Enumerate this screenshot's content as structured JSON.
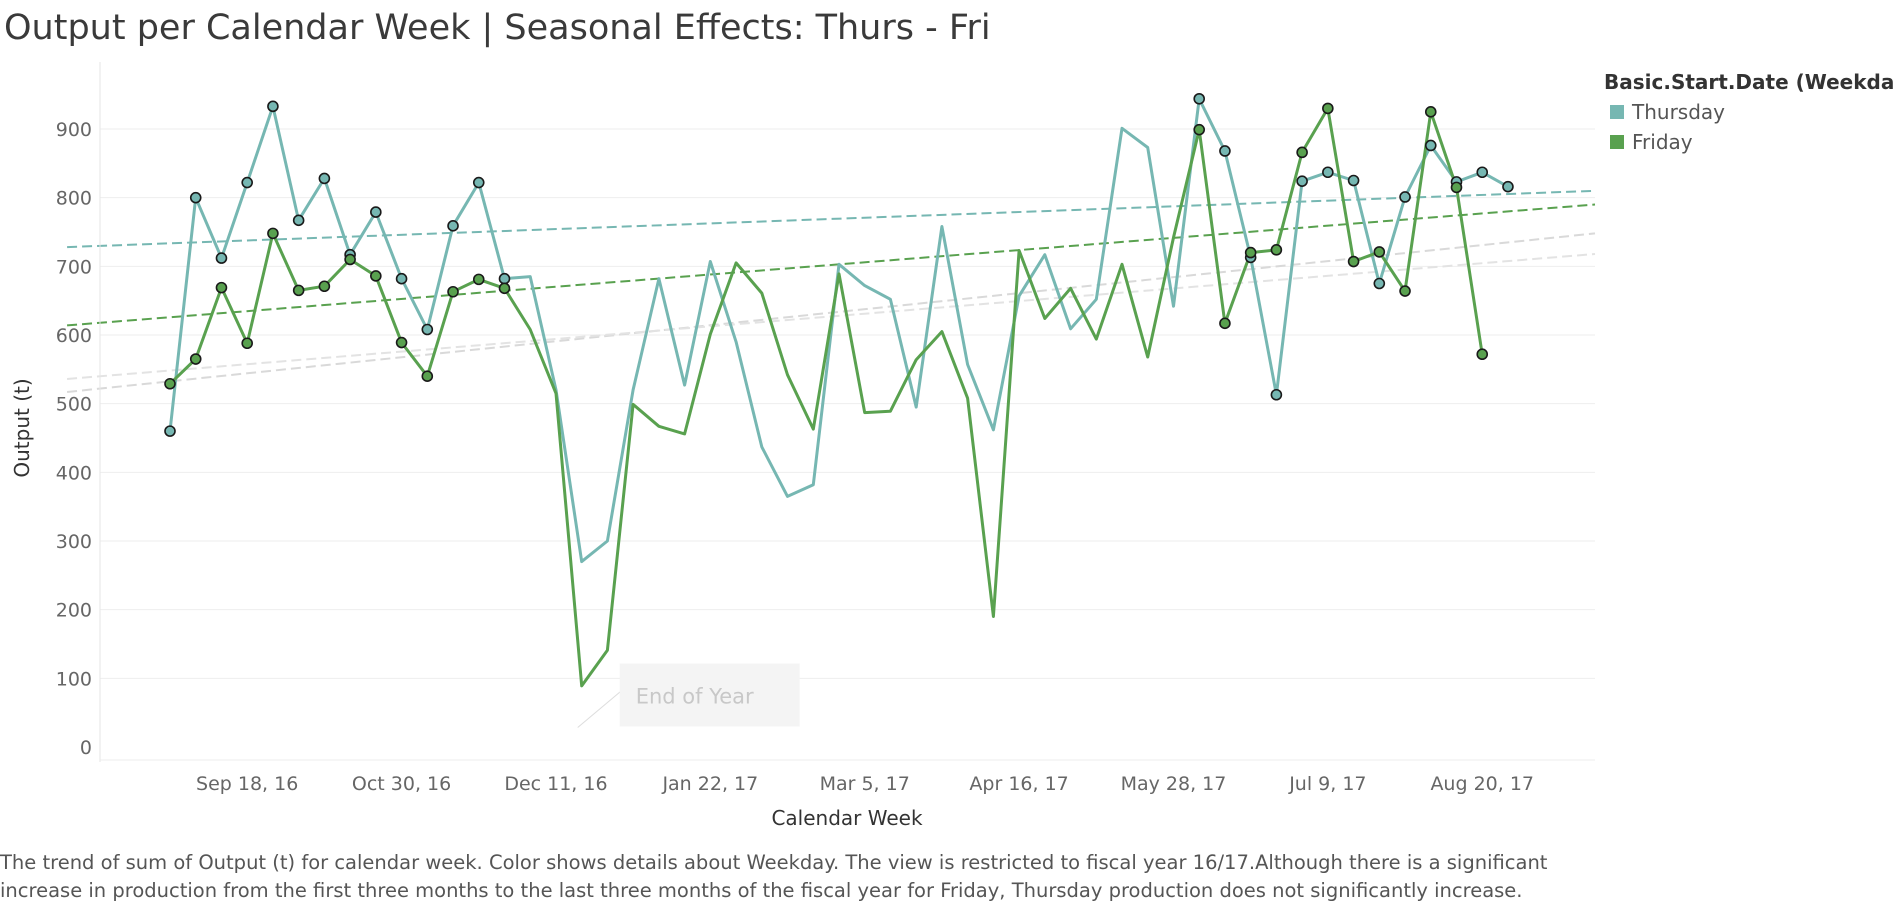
{
  "title": "Output per Calendar Week | Seasonal Effects: Thurs - Fri",
  "legend": {
    "title": "Basic.Start.Date (Weekdays)",
    "items": [
      {
        "label": "Thursday",
        "color": "#76b7b2"
      },
      {
        "label": "Friday",
        "color": "#59a14f"
      }
    ]
  },
  "caption": "The trend of sum of Output (t) for calendar week.  Color shows details about Weekday. The view is restricted to fiscal year 16/17.Although there is a significant increase in production from the first three months to the last three months of the fiscal year for Friday, Thursday production does not significantly increase.",
  "chart_data": {
    "type": "line",
    "title": "Output per Calendar Week | Seasonal Effects: Thurs - Fri",
    "xlabel": "Calendar Week",
    "ylabel": "Output (t)",
    "ylim": [
      0,
      1000
    ],
    "yticks": [
      0,
      100,
      200,
      300,
      400,
      500,
      600,
      700,
      800,
      900
    ],
    "x_tick_labels": [
      "Sep 18, 16",
      "Oct 30, 16",
      "Dec 11, 16",
      "Jan 22, 17",
      "Mar 5, 17",
      "Apr 16, 17",
      "May 28, 17",
      "Jul 9, 17",
      "Aug 20, 17"
    ],
    "x_week_range": [
      -4,
      54
    ],
    "x_tick_weeks": [
      3,
      9,
      15,
      21,
      27,
      33,
      39,
      45,
      51
    ],
    "grid": "horizontal",
    "legend_position": "top-right",
    "series": [
      {
        "name": "Thursday",
        "color": "#76b7b2",
        "points": [
          {
            "week": 0,
            "y": 460,
            "marker": true
          },
          {
            "week": 1,
            "y": 800,
            "marker": true
          },
          {
            "week": 2,
            "y": 712,
            "marker": true
          },
          {
            "week": 3,
            "y": 822,
            "marker": true
          },
          {
            "week": 4,
            "y": 933,
            "marker": true
          },
          {
            "week": 5,
            "y": 767,
            "marker": true
          },
          {
            "week": 6,
            "y": 828,
            "marker": true
          },
          {
            "week": 7,
            "y": 717,
            "marker": true
          },
          {
            "week": 8,
            "y": 779,
            "marker": true
          },
          {
            "week": 9,
            "y": 682,
            "marker": true
          },
          {
            "week": 10,
            "y": 608,
            "marker": true
          },
          {
            "week": 11,
            "y": 759,
            "marker": true
          },
          {
            "week": 12,
            "y": 822,
            "marker": true
          },
          {
            "week": 13,
            "y": 682,
            "marker": true
          },
          {
            "week": 14,
            "y": 685,
            "marker": false
          },
          {
            "week": 15,
            "y": 520,
            "marker": false
          },
          {
            "week": 16,
            "y": 270,
            "marker": false
          },
          {
            "week": 17,
            "y": 300,
            "marker": false
          },
          {
            "week": 18,
            "y": 520,
            "marker": false
          },
          {
            "week": 19,
            "y": 682,
            "marker": false
          },
          {
            "week": 20,
            "y": 527,
            "marker": false
          },
          {
            "week": 21,
            "y": 707,
            "marker": false
          },
          {
            "week": 22,
            "y": 590,
            "marker": false
          },
          {
            "week": 23,
            "y": 437,
            "marker": false
          },
          {
            "week": 24,
            "y": 365,
            "marker": false
          },
          {
            "week": 25,
            "y": 382,
            "marker": false
          },
          {
            "week": 26,
            "y": 703,
            "marker": false
          },
          {
            "week": 27,
            "y": 672,
            "marker": false
          },
          {
            "week": 28,
            "y": 652,
            "marker": false
          },
          {
            "week": 29,
            "y": 495,
            "marker": false
          },
          {
            "week": 30,
            "y": 758,
            "marker": false
          },
          {
            "week": 31,
            "y": 557,
            "marker": false
          },
          {
            "week": 32,
            "y": 462,
            "marker": false
          },
          {
            "week": 33,
            "y": 657,
            "marker": false
          },
          {
            "week": 34,
            "y": 717,
            "marker": false
          },
          {
            "week": 35,
            "y": 609,
            "marker": false
          },
          {
            "week": 36,
            "y": 652,
            "marker": false
          },
          {
            "week": 37,
            "y": 901,
            "marker": false
          },
          {
            "week": 38,
            "y": 873,
            "marker": false
          },
          {
            "week": 39,
            "y": 642,
            "marker": false
          },
          {
            "week": 40,
            "y": 944,
            "marker": true
          },
          {
            "week": 41,
            "y": 868,
            "marker": true
          },
          {
            "week": 42,
            "y": 713,
            "marker": true
          },
          {
            "week": 43,
            "y": 513,
            "marker": true
          },
          {
            "week": 44,
            "y": 824,
            "marker": true
          },
          {
            "week": 45,
            "y": 837,
            "marker": true
          },
          {
            "week": 46,
            "y": 825,
            "marker": true
          },
          {
            "week": 47,
            "y": 675,
            "marker": true
          },
          {
            "week": 48,
            "y": 801,
            "marker": true
          },
          {
            "week": 49,
            "y": 876,
            "marker": true
          },
          {
            "week": 50,
            "y": 823,
            "marker": true
          },
          {
            "week": 51,
            "y": 837,
            "marker": true
          },
          {
            "week": 52,
            "y": 816,
            "marker": true
          }
        ]
      },
      {
        "name": "Friday",
        "color": "#59a14f",
        "points": [
          {
            "week": 0,
            "y": 529,
            "marker": true
          },
          {
            "week": 1,
            "y": 565,
            "marker": true
          },
          {
            "week": 2,
            "y": 669,
            "marker": true
          },
          {
            "week": 3,
            "y": 588,
            "marker": true
          },
          {
            "week": 4,
            "y": 748,
            "marker": true
          },
          {
            "week": 5,
            "y": 665,
            "marker": true
          },
          {
            "week": 6,
            "y": 671,
            "marker": true
          },
          {
            "week": 7,
            "y": 710,
            "marker": true
          },
          {
            "week": 8,
            "y": 686,
            "marker": true
          },
          {
            "week": 9,
            "y": 589,
            "marker": true
          },
          {
            "week": 10,
            "y": 540,
            "marker": true
          },
          {
            "week": 11,
            "y": 663,
            "marker": true
          },
          {
            "week": 12,
            "y": 681,
            "marker": true
          },
          {
            "week": 13,
            "y": 668,
            "marker": true
          },
          {
            "week": 14,
            "y": 608,
            "marker": false
          },
          {
            "week": 15,
            "y": 515,
            "marker": false
          },
          {
            "week": 16,
            "y": 89,
            "marker": false
          },
          {
            "week": 17,
            "y": 141,
            "marker": false
          },
          {
            "week": 18,
            "y": 499,
            "marker": false
          },
          {
            "week": 19,
            "y": 467,
            "marker": false
          },
          {
            "week": 20,
            "y": 456,
            "marker": false
          },
          {
            "week": 21,
            "y": 601,
            "marker": false
          },
          {
            "week": 22,
            "y": 705,
            "marker": false
          },
          {
            "week": 23,
            "y": 661,
            "marker": false
          },
          {
            "week": 24,
            "y": 542,
            "marker": false
          },
          {
            "week": 25,
            "y": 463,
            "marker": false
          },
          {
            "week": 26,
            "y": 689,
            "marker": false
          },
          {
            "week": 27,
            "y": 487,
            "marker": false
          },
          {
            "week": 28,
            "y": 489,
            "marker": false
          },
          {
            "week": 29,
            "y": 564,
            "marker": false
          },
          {
            "week": 30,
            "y": 605,
            "marker": false
          },
          {
            "week": 31,
            "y": 508,
            "marker": false
          },
          {
            "week": 32,
            "y": 190,
            "marker": false
          },
          {
            "week": 33,
            "y": 723,
            "marker": false
          },
          {
            "week": 34,
            "y": 624,
            "marker": false
          },
          {
            "week": 35,
            "y": 668,
            "marker": false
          },
          {
            "week": 36,
            "y": 594,
            "marker": false
          },
          {
            "week": 37,
            "y": 703,
            "marker": false
          },
          {
            "week": 38,
            "y": 568,
            "marker": false
          },
          {
            "week": 39,
            "y": 742,
            "marker": false
          },
          {
            "week": 40,
            "y": 899,
            "marker": true
          },
          {
            "week": 41,
            "y": 617,
            "marker": true
          },
          {
            "week": 42,
            "y": 720,
            "marker": true
          },
          {
            "week": 43,
            "y": 724,
            "marker": true
          },
          {
            "week": 44,
            "y": 866,
            "marker": true
          },
          {
            "week": 45,
            "y": 930,
            "marker": true
          },
          {
            "week": 46,
            "y": 707,
            "marker": true
          },
          {
            "week": 47,
            "y": 721,
            "marker": true
          },
          {
            "week": 48,
            "y": 664,
            "marker": true
          },
          {
            "week": 49,
            "y": 925,
            "marker": true
          },
          {
            "week": 50,
            "y": 815,
            "marker": true
          },
          {
            "week": 51,
            "y": 572,
            "marker": true
          }
        ]
      }
    ],
    "trend_lines": [
      {
        "series": "Thursday",
        "color": "#76b7b2",
        "style": "dashed",
        "y_start": 728,
        "y_end": 810
      },
      {
        "series": "Friday",
        "color": "#59a14f",
        "style": "dashed",
        "y_start": 614,
        "y_end": 790
      },
      {
        "series": "",
        "color": "#d9d9d9",
        "style": "dashed",
        "y_start": 517,
        "y_end": 748
      },
      {
        "series": "",
        "color": "#e3e3e3",
        "style": "dashed",
        "y_start": 536,
        "y_end": 718
      }
    ],
    "annotations": [
      {
        "text": "End of Year",
        "week": 17.4,
        "y": 75
      }
    ]
  }
}
